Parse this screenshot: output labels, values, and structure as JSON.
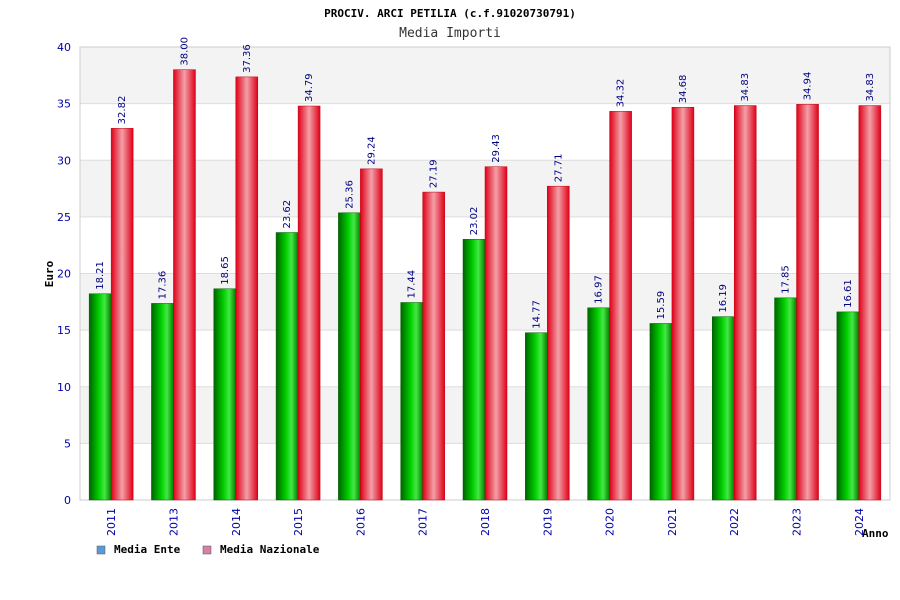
{
  "chart_data": {
    "type": "bar",
    "title": "PROCIV. ARCI PETILIA (c.f.91020730791)",
    "subtitle": "Media Importi",
    "xlabel": "Anno",
    "ylabel": "Euro",
    "ylim": [
      0,
      40
    ],
    "yticks": [
      "0",
      "5",
      "10",
      "15",
      "20",
      "25",
      "30",
      "35",
      "40"
    ],
    "grid": true,
    "legend_position": "bottom-left",
    "categories": [
      "2011",
      "2013",
      "2014",
      "2015",
      "2016",
      "2017",
      "2018",
      "2019",
      "2020",
      "2021",
      "2022",
      "2023",
      "2024"
    ],
    "series": [
      {
        "name": "Media Ente",
        "color": "#00b000",
        "legend_color": "#5b9bd5",
        "values": [
          18.21,
          17.36,
          18.65,
          23.62,
          25.36,
          17.44,
          23.02,
          14.77,
          16.97,
          15.59,
          16.19,
          17.85,
          16.61
        ],
        "labels": [
          "18.21",
          "17.36",
          "18.65",
          "23.62",
          "25.36",
          "17.44",
          "23.02",
          "14.77",
          "16.97",
          "15.59",
          "16.19",
          "17.85",
          "16.61"
        ]
      },
      {
        "name": "Media Nazionale",
        "color": "#e8001a",
        "legend_color": "#d67fa8",
        "values": [
          32.82,
          38.0,
          37.36,
          34.79,
          29.24,
          27.19,
          29.43,
          27.71,
          34.32,
          34.68,
          34.83,
          34.94,
          34.83
        ],
        "labels": [
          "32.82",
          "38.00",
          "37.36",
          "34.79",
          "29.24",
          "27.19",
          "29.43",
          "27.71",
          "34.32",
          "34.68",
          "34.83",
          "34.94",
          "34.83"
        ]
      }
    ]
  }
}
